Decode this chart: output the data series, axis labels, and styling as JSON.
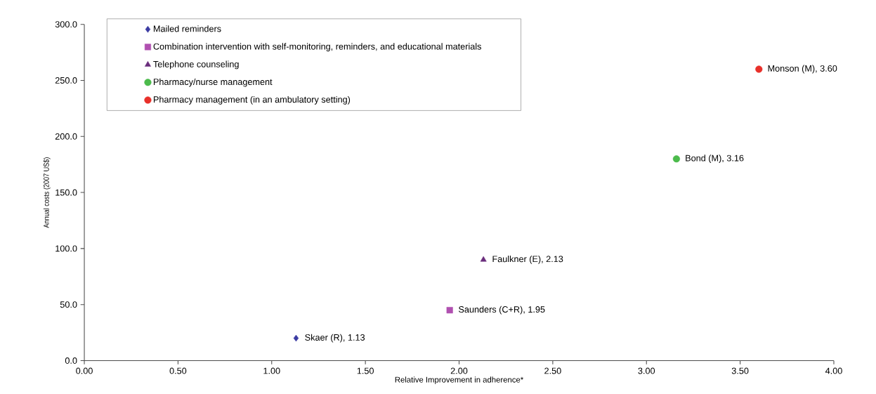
{
  "chart_data": {
    "type": "scatter",
    "xlabel": "Relative Improvement in adherence*",
    "ylabel": "Annual costs (2007 US$)",
    "xlim": [
      0,
      4
    ],
    "xticks": [
      {
        "value": 0,
        "label": "0.00"
      },
      {
        "value": 0.5,
        "label": "0.50"
      },
      {
        "value": 1,
        "label": "1.00"
      },
      {
        "value": 1.5,
        "label": "1.50"
      },
      {
        "value": 2,
        "label": "2.00"
      },
      {
        "value": 2.5,
        "label": "2.50"
      },
      {
        "value": 3,
        "label": "3.00"
      },
      {
        "value": 3.5,
        "label": "3.50"
      },
      {
        "value": 4,
        "label": "4.00"
      }
    ],
    "ylim": [
      0,
      300
    ],
    "yticks": [
      {
        "value": 0,
        "label": "0.0"
      },
      {
        "value": 50,
        "label": "50.0"
      },
      {
        "value": 100,
        "label": "100.0"
      },
      {
        "value": 150,
        "label": "150.0"
      },
      {
        "value": 200,
        "label": "200.0"
      },
      {
        "value": 250,
        "label": "250.0"
      },
      {
        "value": 300,
        "label": "300.0"
      }
    ],
    "legend": "top left",
    "series": [
      {
        "name": "Mailed reminders",
        "color": "#3b3ba3",
        "marker": "diamond",
        "x": [
          1.13
        ],
        "values": [
          20
        ]
      },
      {
        "name": "Combination intervention with self-monitoring, reminders, and educational materials",
        "color": "#b050b0",
        "marker": "square",
        "x": [
          1.95
        ],
        "values": [
          45
        ]
      },
      {
        "name": "Telephone counseling",
        "color": "#6a2d7c",
        "marker": "triangle",
        "x": [
          2.13
        ],
        "values": [
          90
        ]
      },
      {
        "name": "Pharmacy/nurse management",
        "color": "#4cbb4c",
        "marker": "circle",
        "x": [
          3.16
        ],
        "values": [
          180
        ]
      },
      {
        "name": "Pharmacy management (in an ambulatory setting)",
        "color": "#e8302a",
        "marker": "circle",
        "x": [
          3.6
        ],
        "values": [
          260
        ]
      }
    ],
    "annotations": [
      {
        "text": "Skaer (R), 1.13",
        "x": 1.13,
        "y": 20
      },
      {
        "text": "Saunders (C+R), 1.95",
        "x": 1.95,
        "y": 45
      },
      {
        "text": "Faulkner (E), 2.13",
        "x": 2.13,
        "y": 90
      },
      {
        "text": "Bond (M), 3.16",
        "x": 3.16,
        "y": 180
      },
      {
        "text": "Monson (M), 3.60",
        "x": 3.6,
        "y": 260
      }
    ]
  }
}
